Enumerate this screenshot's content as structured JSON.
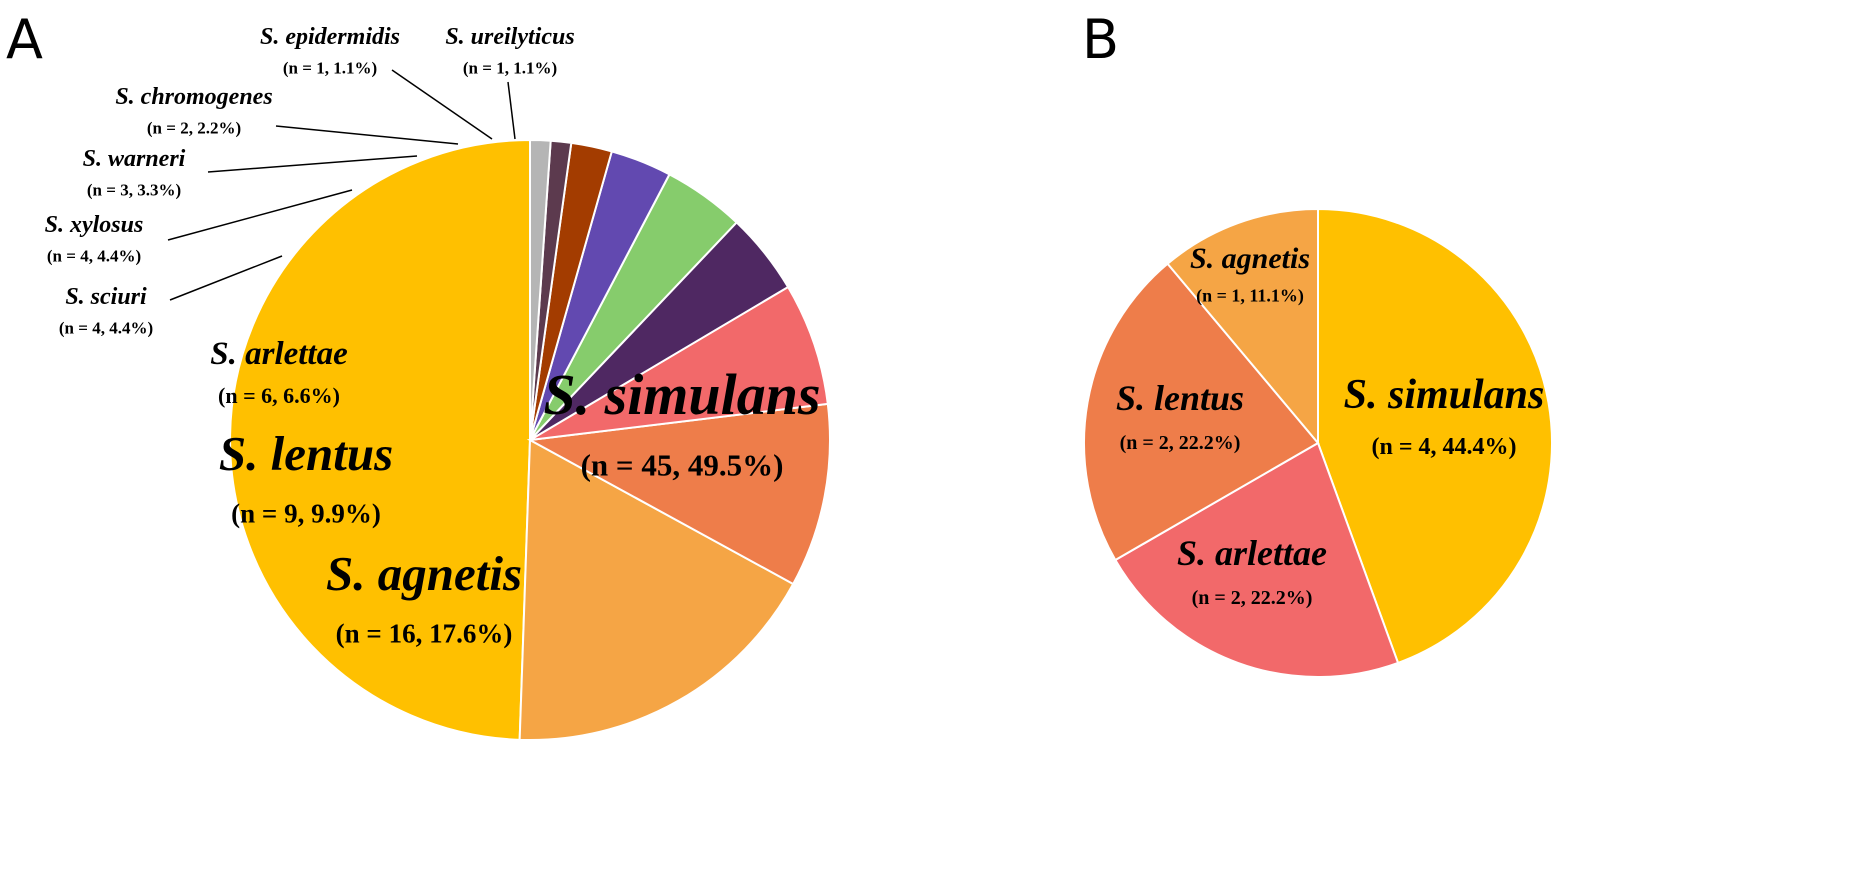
{
  "figure": {
    "panel_a_letter": "A",
    "panel_b_letter": "B"
  },
  "chart_data": [
    {
      "type": "pie",
      "panel": "A",
      "slices": [
        {
          "name": "S. simulans",
          "value": 45,
          "percent": 49.5,
          "label_count": "(n = 45, 49.5%)",
          "color": "#FFC000"
        },
        {
          "name": "S. agnetis",
          "value": 16,
          "percent": 17.6,
          "label_count": "(n = 16, 17.6%)",
          "color": "#F5A545"
        },
        {
          "name": "S. lentus",
          "value": 9,
          "percent": 9.9,
          "label_count": "(n = 9, 9.9%)",
          "color": "#EE7D4A"
        },
        {
          "name": "S. arlettae",
          "value": 6,
          "percent": 6.6,
          "label_count": "(n = 6, 6.6%)",
          "color": "#F2696A"
        },
        {
          "name": "S. sciuri",
          "value": 4,
          "percent": 4.4,
          "label_count": "(n = 4, 4.4%)",
          "color": "#4F2862"
        },
        {
          "name": "S. xylosus",
          "value": 4,
          "percent": 4.4,
          "label_count": "(n = 4, 4.4%)",
          "color": "#86CC6C"
        },
        {
          "name": "S. warneri",
          "value": 3,
          "percent": 3.3,
          "label_count": "(n = 3, 3.3%)",
          "color": "#6249B0"
        },
        {
          "name": "S. chromogenes",
          "value": 2,
          "percent": 2.2,
          "label_count": "(n = 2, 2.2%)",
          "color": "#A33C00"
        },
        {
          "name": "S. epidermidis",
          "value": 1,
          "percent": 1.1,
          "label_count": "(n = 1, 1.1%)",
          "color": "#5C3A4E"
        },
        {
          "name": "S. ureilyticus",
          "value": 1,
          "percent": 1.1,
          "label_count": "(n = 1, 1.1%)",
          "color": "#B5B5B5"
        }
      ]
    },
    {
      "type": "pie",
      "panel": "B",
      "slices": [
        {
          "name": "S. simulans",
          "value": 4,
          "percent": 44.4,
          "label_count": "(n = 4, 44.4%)",
          "color": "#FFC000"
        },
        {
          "name": "S. arlettae",
          "value": 2,
          "percent": 22.2,
          "label_count": "(n = 2, 22.2%)",
          "color": "#F2696A"
        },
        {
          "name": "S. lentus",
          "value": 2,
          "percent": 22.2,
          "label_count": "(n = 2, 22.2%)",
          "color": "#EE7D4A"
        },
        {
          "name": "S. agnetis",
          "value": 1,
          "percent": 11.1,
          "label_count": "(n = 1, 11.1%)",
          "color": "#F5A545"
        }
      ]
    }
  ]
}
